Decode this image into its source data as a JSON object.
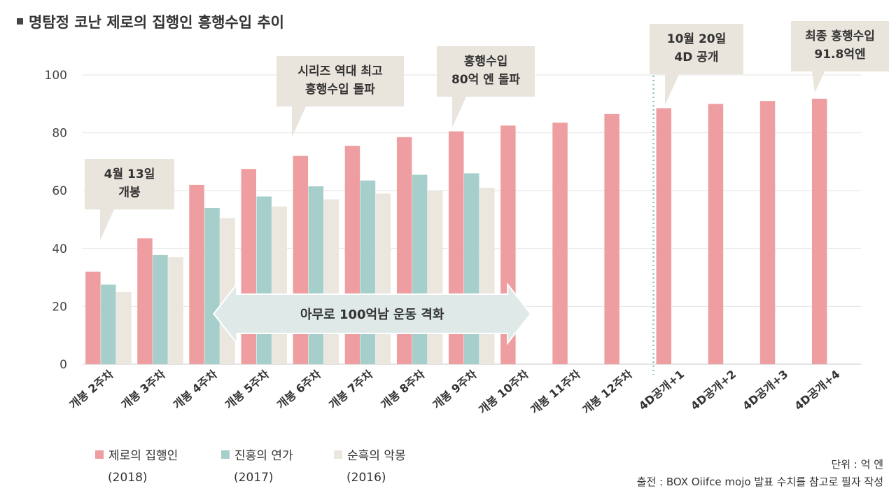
{
  "title": "명탐정 코난 제로의 집행인 흥행수입 추이",
  "unit": "단위 : 억 엔",
  "source": "출전 : BOX Oiifce mojo 발표 수치를 참고로 필자 작성",
  "chart_data": {
    "type": "bar",
    "categories": [
      "개봉 2주차",
      "개봉 3주차",
      "개봉 4주차",
      "개봉 5주차",
      "개봉 6주차",
      "개봉 7주차",
      "개봉 8주차",
      "개봉 9주차",
      "개봉 10주차",
      "개봉 11주차",
      "개봉 12주차",
      "4D공개+1",
      "4D공개+2",
      "4D공개+3",
      "4D공개+4"
    ],
    "series": [
      {
        "name": "제로의 집행인",
        "year": "(2018)",
        "color": "#ee9ea0",
        "values": [
          32.0,
          43.5,
          62.0,
          67.5,
          72.0,
          75.5,
          78.5,
          80.5,
          82.5,
          83.5,
          86.5,
          88.5,
          90.0,
          91.0,
          91.8
        ]
      },
      {
        "name": "진홍의 연가",
        "year": "(2017)",
        "color": "#a6cfcb",
        "values": [
          27.5,
          37.8,
          54.0,
          58.0,
          61.5,
          63.5,
          65.5,
          66.0,
          null,
          null,
          null,
          null,
          null,
          null,
          null
        ]
      },
      {
        "name": "순흑의 악몽",
        "year": "(2016)",
        "color": "#ebe6de",
        "values": [
          25.0,
          37.0,
          50.5,
          54.5,
          57.0,
          59.0,
          60.0,
          61.0,
          null,
          null,
          null,
          null,
          null,
          null,
          null
        ]
      }
    ],
    "ylim": [
      0,
      100
    ],
    "yticks": [
      0,
      20,
      40,
      60,
      80,
      100
    ],
    "grid": true,
    "legend": "bottom-left",
    "divider_after": "개봉 12주차",
    "callouts": [
      {
        "lines": [
          "4월 13일",
          "개봉"
        ],
        "category": "개봉 2주차"
      },
      {
        "lines": [
          "시리즈 역대 최고",
          "흥행수입 돌파"
        ],
        "category": "개봉 6주차"
      },
      {
        "lines": [
          "흥행수입",
          "80억 엔 돌파"
        ],
        "category": "개봉 9주차"
      },
      {
        "lines": [
          "10월 20일",
          "4D 공개"
        ],
        "category": "4D공개+1"
      },
      {
        "lines": [
          "최종 흥행수입",
          "91.8억엔"
        ],
        "category": "4D공개+4"
      }
    ],
    "arrow_label": "아무로 100억남 운동 격화"
  }
}
